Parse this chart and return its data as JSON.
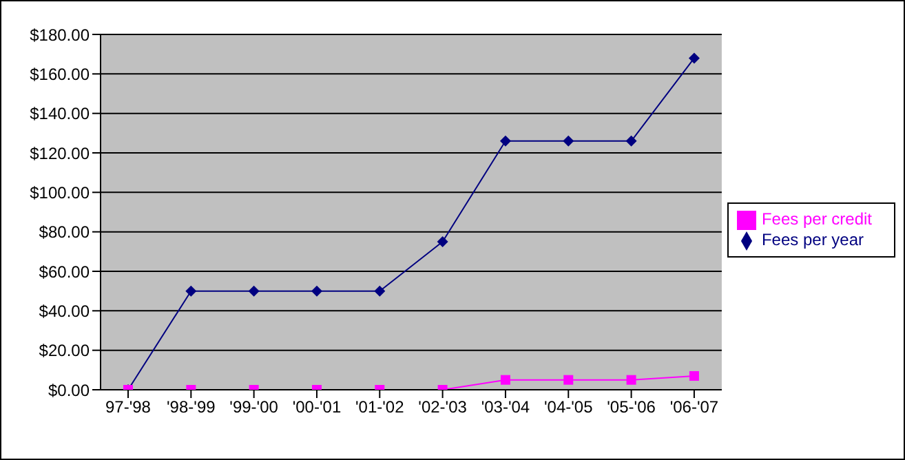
{
  "chart_data": {
    "type": "line",
    "categories": [
      "97-'98",
      "'98-'99",
      "'99-'00",
      "'00-'01",
      "'01-'02",
      "'02-'03",
      "'03-'04",
      "'04-'05",
      "'05-'06",
      "'06-'07"
    ],
    "series": [
      {
        "name": "Fees per year",
        "color": "#000080",
        "marker": "diamond",
        "values": [
          0,
          50,
          50,
          50,
          50,
          75,
          126,
          126,
          126,
          168
        ]
      },
      {
        "name": "Fees per credit",
        "color": "#ff00ff",
        "marker": "square",
        "values": [
          0,
          0,
          0,
          0,
          0,
          0,
          5,
          5,
          5,
          7
        ]
      }
    ],
    "ylim": [
      0,
      180
    ],
    "yticks": [
      {
        "value": 0,
        "label": "$0.00"
      },
      {
        "value": 20,
        "label": "$20.00"
      },
      {
        "value": 40,
        "label": "$40.00"
      },
      {
        "value": 60,
        "label": "$60.00"
      },
      {
        "value": 80,
        "label": "$80.00"
      },
      {
        "value": 100,
        "label": "$100.00"
      },
      {
        "value": 120,
        "label": "$120.00"
      },
      {
        "value": 140,
        "label": "$140.00"
      },
      {
        "value": 160,
        "label": "$160.00"
      },
      {
        "value": 180,
        "label": "$180.00"
      }
    ],
    "grid": "y",
    "legend": "right",
    "line_style": "solid"
  }
}
